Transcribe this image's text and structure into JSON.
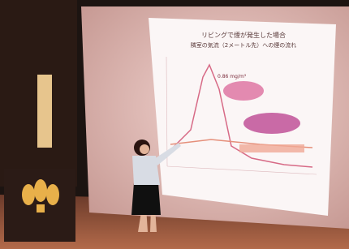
{
  "slide": {
    "title_lines": [
      "リビングで煙が発生した場合",
      "隣室の気流（2メートル先）への煙の流れ"
    ],
    "annotation": "0.86 mg/m³"
  }
}
